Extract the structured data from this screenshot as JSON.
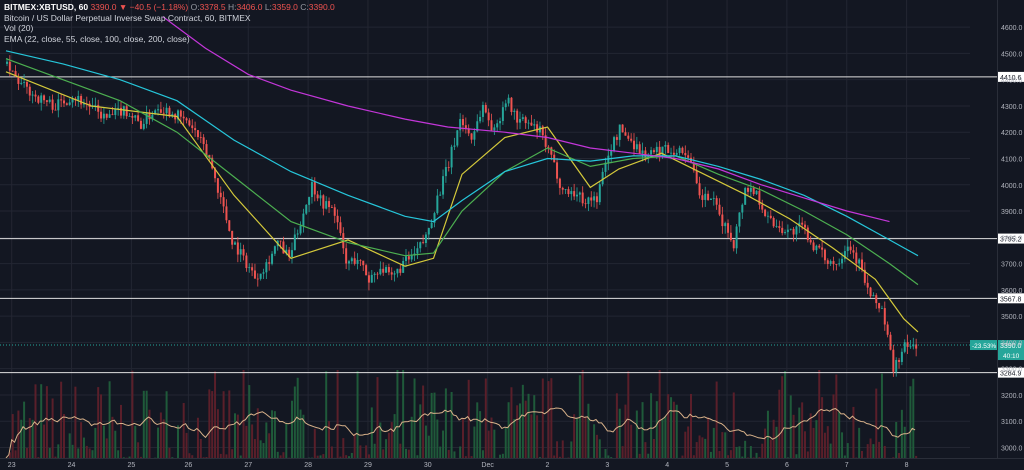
{
  "header": {
    "symbol": "BITMEX:XBTUSD, 60",
    "last": "3390.0",
    "change": "▼ −40.5 (−1.18%)",
    "o_label": "O:",
    "o_val": "3378.5",
    "h_label": "H:",
    "h_val": "3406.0",
    "l_label": "L:",
    "l_val": "3359.0",
    "c_label": "C:",
    "c_val": "3390.0",
    "title_line": "Bitcoin / US Dollar Perpetual Inverse Swap Contract, 60, BITMEX",
    "vol_line": "Vol (20)",
    "ema_line": "EMA (22, close, 55, close, 100, close, 200, close)"
  },
  "colors": {
    "background": "#131722",
    "grid": "#232632",
    "up": "#26a69a",
    "down": "#ef5350",
    "vol_up": "#1f5a3a",
    "vol_down": "#5a1f2a",
    "ema22": "#d4c93b",
    "ema55": "#4caf50",
    "ema100": "#26c6da",
    "ema200": "#c336d9",
    "vol_ma": "#d9b28a",
    "hline": "#e0e0e0",
    "current": "#26a69a"
  },
  "chart_data": {
    "type": "candlestick",
    "symbol": "BITMEX:XBTUSD",
    "interval": "60",
    "x_ticks": [
      "23",
      "24",
      "25",
      "26",
      "27",
      "28",
      "29",
      "30",
      "Dec",
      "2",
      "3",
      "4",
      "5",
      "6",
      "7",
      "8"
    ],
    "price_ticks": [
      4600,
      4500,
      4400,
      4300,
      4200,
      4100,
      4000,
      3900,
      3800,
      3700,
      3600,
      3500,
      3400,
      3300,
      3200,
      3100,
      3000
    ],
    "price_tick_labels": [
      "4600.0",
      "4500.0",
      "4400.0",
      "4300.0",
      "4200.0",
      "4100.0",
      "4000.0",
      "3900.0",
      "3800.0",
      "3700.0",
      "3600.0",
      "3500.0",
      "3400.0",
      "3300.0",
      "3200.0",
      "3100.0",
      "3000.0"
    ],
    "ylim": [
      2960,
      4650
    ],
    "horizontal_levels": [
      {
        "value": 4410.6,
        "label": "4410.6"
      },
      {
        "value": 3795.2,
        "label": "3795.2"
      },
      {
        "value": 3567.8,
        "label": "3567.8"
      },
      {
        "value": 3284.9,
        "label": "3284.9"
      }
    ],
    "current_price": {
      "value": 3390.0,
      "label": "3390.0",
      "pct_label": "-23.53%",
      "countdown": "40:10"
    },
    "ohlc_path": [
      [
        0,
        4460
      ],
      [
        6,
        4380
      ],
      [
        12,
        4330
      ],
      [
        18,
        4300
      ],
      [
        24,
        4340
      ],
      [
        30,
        4300
      ],
      [
        36,
        4250
      ],
      [
        42,
        4290
      ],
      [
        48,
        4230
      ],
      [
        54,
        4300
      ],
      [
        60,
        4270
      ],
      [
        66,
        4220
      ],
      [
        72,
        4100
      ],
      [
        76,
        3950
      ],
      [
        80,
        3790
      ],
      [
        84,
        3720
      ],
      [
        88,
        3650
      ],
      [
        92,
        3700
      ],
      [
        96,
        3780
      ],
      [
        100,
        3720
      ],
      [
        104,
        3860
      ],
      [
        108,
        4000
      ],
      [
        112,
        3930
      ],
      [
        116,
        3900
      ],
      [
        120,
        3700
      ],
      [
        124,
        3720
      ],
      [
        128,
        3640
      ],
      [
        132,
        3690
      ],
      [
        136,
        3640
      ],
      [
        140,
        3700
      ],
      [
        144,
        3730
      ],
      [
        148,
        3800
      ],
      [
        152,
        3950
      ],
      [
        156,
        4080
      ],
      [
        160,
        4250
      ],
      [
        164,
        4180
      ],
      [
        168,
        4300
      ],
      [
        172,
        4200
      ],
      [
        176,
        4330
      ],
      [
        180,
        4250
      ],
      [
        184,
        4230
      ],
      [
        188,
        4200
      ],
      [
        192,
        4100
      ],
      [
        196,
        3980
      ],
      [
        200,
        3970
      ],
      [
        204,
        3940
      ],
      [
        208,
        3950
      ],
      [
        212,
        4120
      ],
      [
        216,
        4210
      ],
      [
        220,
        4170
      ],
      [
        224,
        4120
      ],
      [
        228,
        4120
      ],
      [
        232,
        4140
      ],
      [
        236,
        4130
      ],
      [
        240,
        4120
      ],
      [
        244,
        3950
      ],
      [
        248,
        3950
      ],
      [
        252,
        3860
      ],
      [
        256,
        3780
      ],
      [
        260,
        3990
      ],
      [
        264,
        3970
      ],
      [
        268,
        3870
      ],
      [
        272,
        3840
      ],
      [
        276,
        3820
      ],
      [
        280,
        3840
      ],
      [
        284,
        3770
      ],
      [
        288,
        3720
      ],
      [
        292,
        3700
      ],
      [
        296,
        3780
      ],
      [
        300,
        3700
      ],
      [
        304,
        3570
      ],
      [
        308,
        3530
      ],
      [
        312,
        3300
      ],
      [
        316,
        3380
      ],
      [
        320,
        3390
      ]
    ],
    "ema_series": [
      {
        "name": "EMA 22",
        "key": "ema22",
        "points": [
          [
            0,
            4430
          ],
          [
            30,
            4300
          ],
          [
            60,
            4260
          ],
          [
            80,
            3960
          ],
          [
            100,
            3720
          ],
          [
            120,
            3790
          ],
          [
            140,
            3690
          ],
          [
            150,
            3720
          ],
          [
            160,
            4040
          ],
          [
            175,
            4180
          ],
          [
            190,
            4220
          ],
          [
            205,
            3990
          ],
          [
            215,
            4060
          ],
          [
            230,
            4120
          ],
          [
            245,
            4040
          ],
          [
            260,
            3960
          ],
          [
            275,
            3870
          ],
          [
            290,
            3760
          ],
          [
            305,
            3640
          ],
          [
            315,
            3490
          ],
          [
            320,
            3440
          ]
        ]
      },
      {
        "name": "EMA 55",
        "key": "ema55",
        "points": [
          [
            0,
            4480
          ],
          [
            20,
            4400
          ],
          [
            40,
            4320
          ],
          [
            60,
            4200
          ],
          [
            80,
            4030
          ],
          [
            100,
            3860
          ],
          [
            120,
            3780
          ],
          [
            140,
            3730
          ],
          [
            150,
            3740
          ],
          [
            160,
            3900
          ],
          [
            175,
            4050
          ],
          [
            190,
            4140
          ],
          [
            205,
            4070
          ],
          [
            220,
            4100
          ],
          [
            235,
            4110
          ],
          [
            250,
            4040
          ],
          [
            265,
            3980
          ],
          [
            280,
            3900
          ],
          [
            295,
            3810
          ],
          [
            310,
            3700
          ],
          [
            320,
            3620
          ]
        ]
      },
      {
        "name": "EMA 100",
        "key": "ema100",
        "points": [
          [
            0,
            4510
          ],
          [
            20,
            4460
          ],
          [
            40,
            4400
          ],
          [
            60,
            4320
          ],
          [
            80,
            4170
          ],
          [
            100,
            4050
          ],
          [
            120,
            3960
          ],
          [
            140,
            3880
          ],
          [
            150,
            3860
          ],
          [
            160,
            3940
          ],
          [
            175,
            4050
          ],
          [
            190,
            4100
          ],
          [
            205,
            4090
          ],
          [
            220,
            4110
          ],
          [
            235,
            4110
          ],
          [
            250,
            4070
          ],
          [
            265,
            4020
          ],
          [
            280,
            3960
          ],
          [
            295,
            3880
          ],
          [
            310,
            3790
          ],
          [
            320,
            3730
          ]
        ]
      },
      {
        "name": "EMA 200",
        "key": "ema200",
        "points": [
          [
            55,
            4640
          ],
          [
            70,
            4520
          ],
          [
            85,
            4420
          ],
          [
            100,
            4360
          ],
          [
            120,
            4300
          ],
          [
            140,
            4250
          ],
          [
            155,
            4220
          ],
          [
            175,
            4200
          ],
          [
            190,
            4180
          ],
          [
            205,
            4140
          ],
          [
            220,
            4120
          ],
          [
            235,
            4100
          ],
          [
            250,
            4060
          ],
          [
            265,
            4000
          ],
          [
            280,
            3950
          ],
          [
            295,
            3900
          ],
          [
            310,
            3860
          ]
        ]
      }
    ],
    "bars_total": 320,
    "x_tick_bars": [
      2,
      23,
      44,
      64,
      85,
      106,
      127,
      148,
      169,
      190,
      211,
      232,
      253,
      274,
      295,
      316
    ],
    "volume": {
      "name": "Vol (20)",
      "ma_period": 20
    }
  }
}
